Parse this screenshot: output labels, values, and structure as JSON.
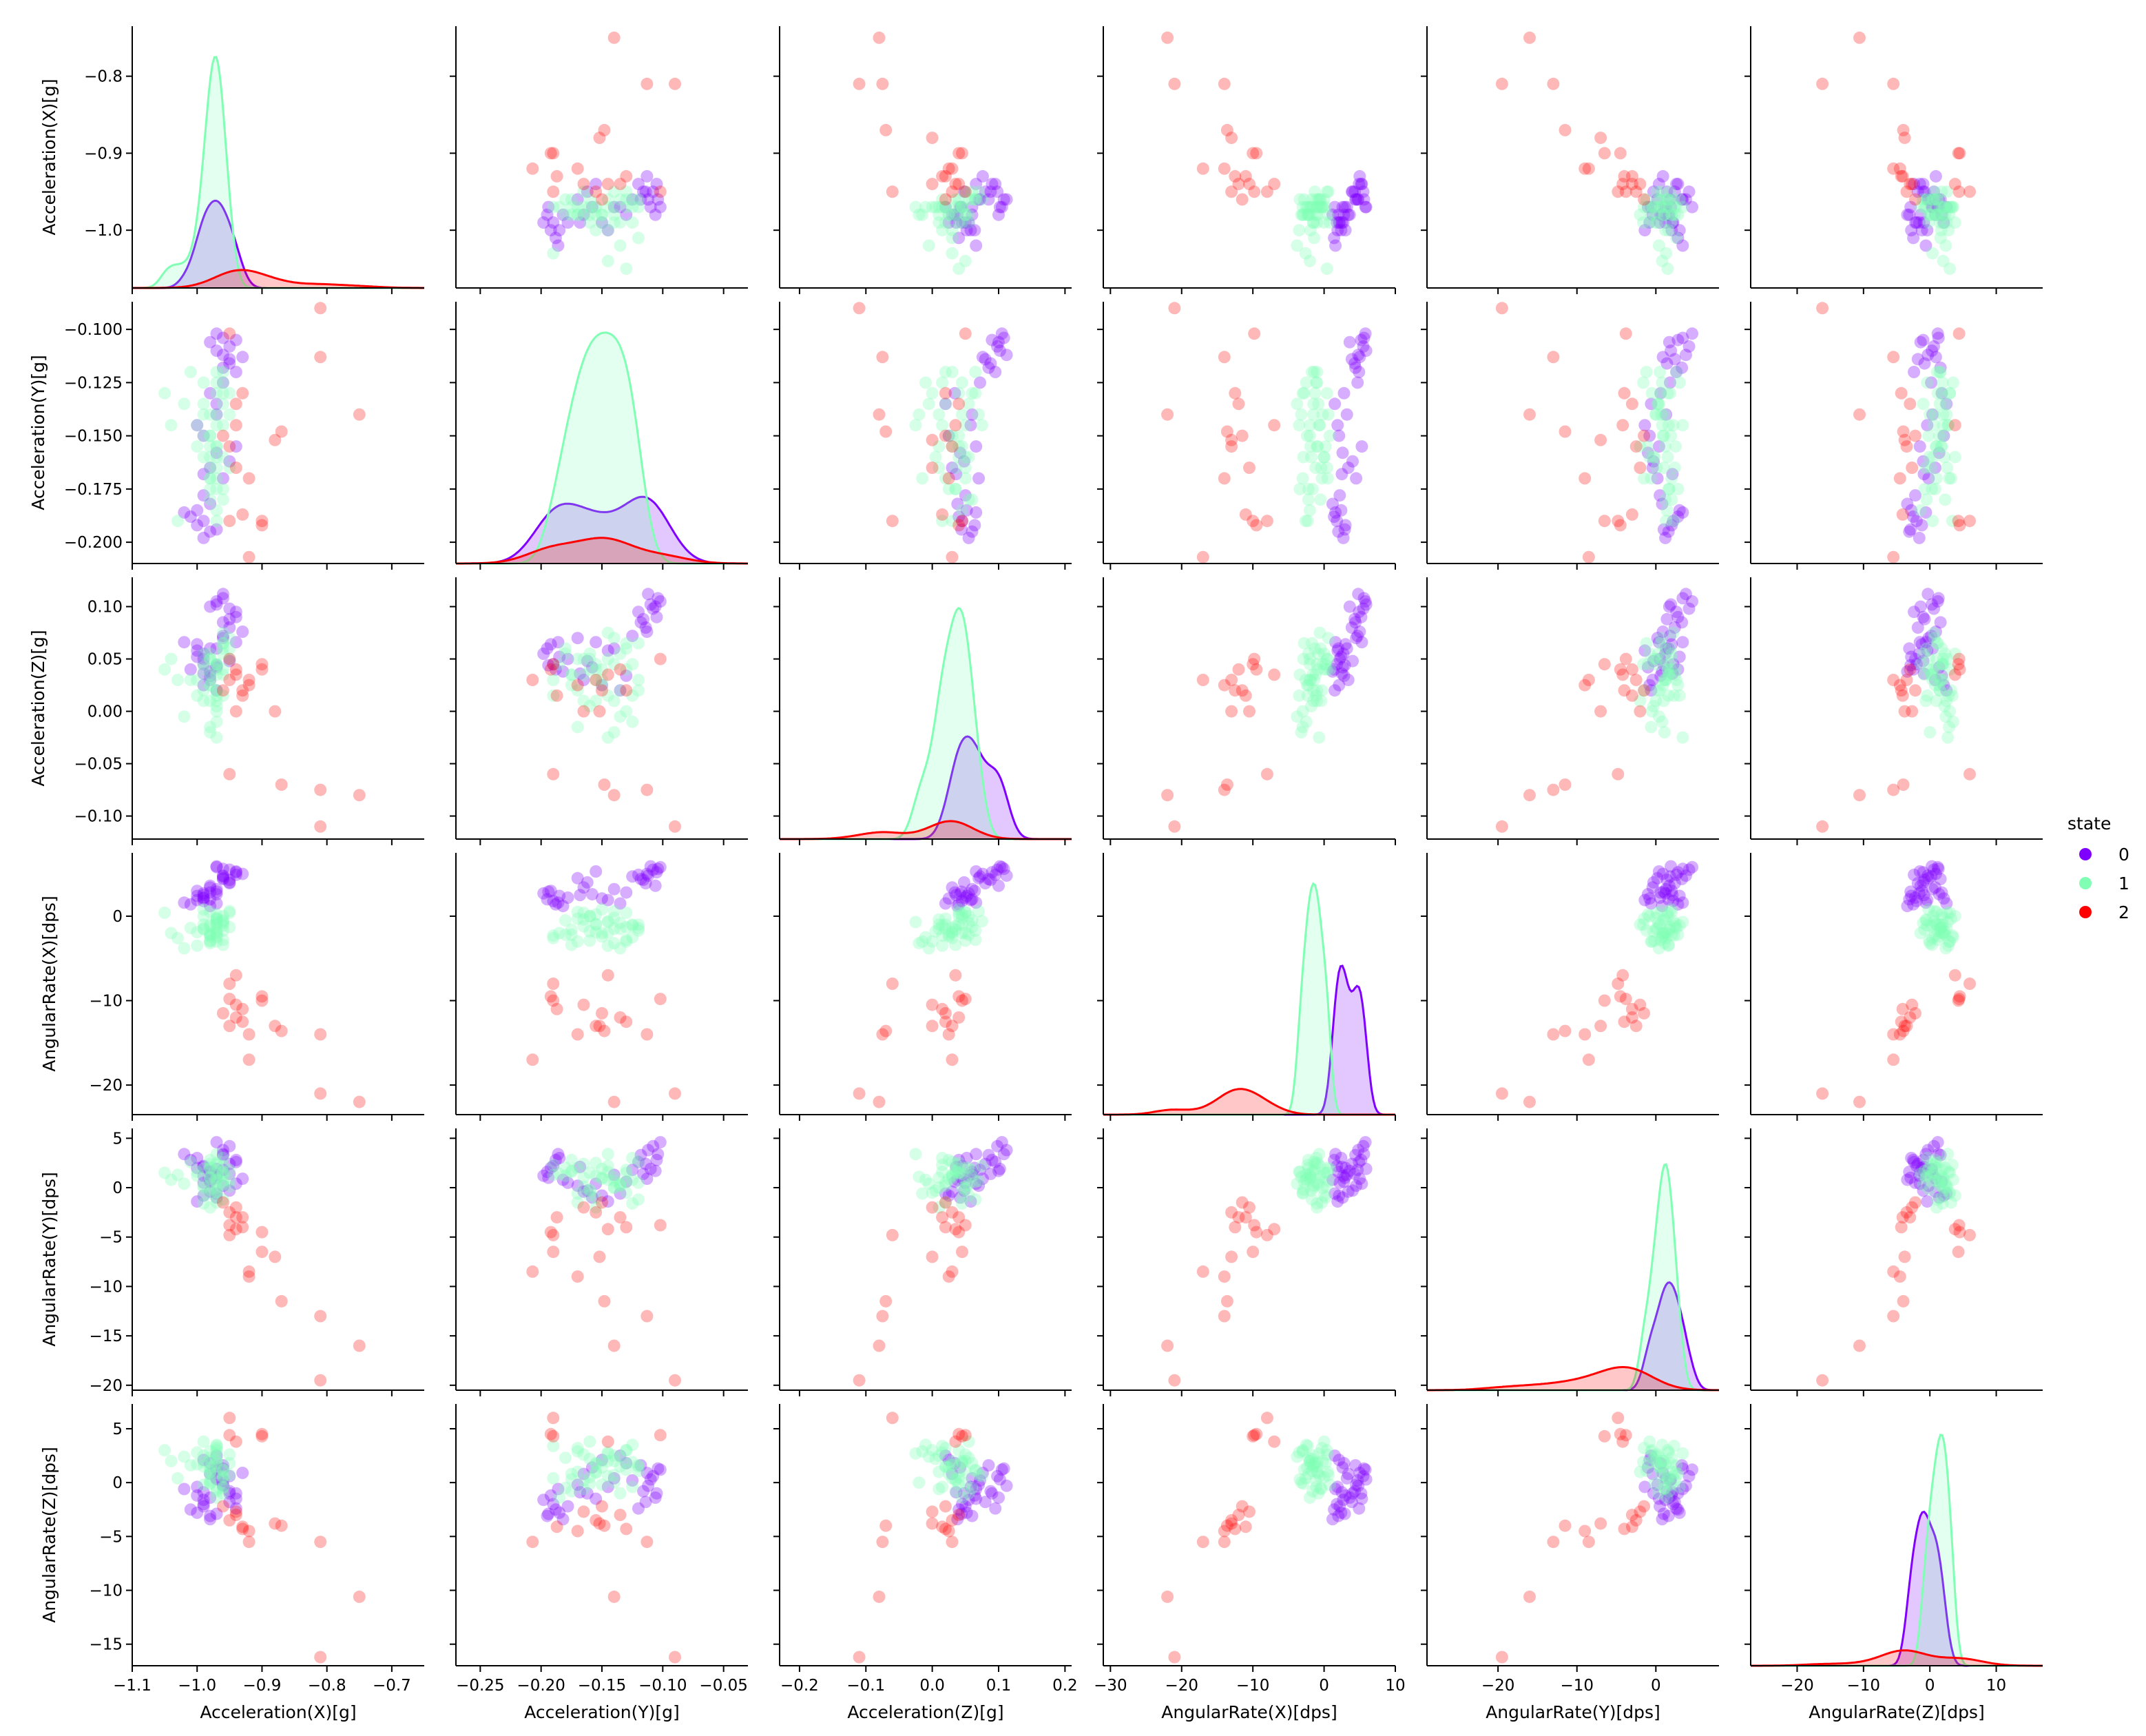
{
  "chart_data": {
    "type": "scatter",
    "kind": "pairplot",
    "variables": [
      "Acceleration(X)[g]",
      "Acceleration(Y)[g]",
      "Acceleration(Z)[g]",
      "AngularRate(X)[dps]",
      "AngularRate(Y)[dps]",
      "AngularRate(Z)[dps]"
    ],
    "diagonal": "kde",
    "axes": [
      {
        "lim": [
          -1.1,
          -0.65
        ],
        "ticks": [
          -1.1,
          -1.0,
          -0.9,
          -0.8,
          -0.7
        ],
        "tick_labels": [
          "−1.1",
          "−1.0",
          "−0.9",
          "−0.8",
          "−0.7"
        ]
      },
      {
        "lim": [
          -0.27,
          -0.03
        ],
        "ticks": [
          -0.25,
          -0.2,
          -0.15,
          -0.1,
          -0.05
        ],
        "tick_labels": [
          "−0.25",
          "−0.20",
          "−0.15",
          "−0.10",
          "−0.05"
        ]
      },
      {
        "lim": [
          -0.23,
          0.21
        ],
        "ticks": [
          -0.2,
          -0.1,
          0.0,
          0.1,
          0.2
        ],
        "tick_labels": [
          "−0.2",
          "−0.1",
          "0.0",
          "0.1",
          "0.2"
        ]
      },
      {
        "lim": [
          -31,
          10
        ],
        "ticks": [
          -30,
          -20,
          -10,
          0,
          10
        ],
        "tick_labels": [
          "−30",
          "−20",
          "−10",
          "0",
          "10"
        ]
      },
      {
        "lim": [
          -29,
          8
        ],
        "ticks": [
          -20,
          -10,
          0
        ],
        "tick_labels": [
          "−20",
          "−10",
          "0"
        ]
      },
      {
        "lim": [
          -27,
          17
        ],
        "ticks": [
          -20,
          -10,
          0,
          10
        ],
        "tick_labels": [
          "−20",
          "−10",
          "0",
          "10"
        ]
      }
    ],
    "row_axes": [
      {
        "lim": [
          -1.075,
          -0.735
        ],
        "ticks": [
          -1.0,
          -0.9,
          -0.8
        ],
        "tick_labels": [
          "−1.0",
          "−0.9",
          "−0.8"
        ]
      },
      {
        "lim": [
          -0.21,
          -0.087
        ],
        "ticks": [
          -0.2,
          -0.175,
          -0.15,
          -0.125,
          -0.1
        ],
        "tick_labels": [
          "−0.200",
          "−0.175",
          "−0.150",
          "−0.125",
          "−0.100"
        ]
      },
      {
        "lim": [
          -0.122,
          0.128
        ],
        "ticks": [
          -0.1,
          -0.05,
          0.0,
          0.05,
          0.1
        ],
        "tick_labels": [
          "−0.10",
          "−0.05",
          "0.00",
          "0.05",
          "0.10"
        ]
      },
      {
        "lim": [
          -23.5,
          7.5
        ],
        "ticks": [
          -20,
          -10,
          0
        ],
        "tick_labels": [
          "−20",
          "−10",
          "0"
        ]
      },
      {
        "lim": [
          -20.5,
          6
        ],
        "ticks": [
          -20,
          -15,
          -10,
          -5,
          0,
          5
        ],
        "tick_labels": [
          "−20",
          "−15",
          "−10",
          "−5",
          "0",
          "5"
        ]
      },
      {
        "lim": [
          -17,
          7.3
        ],
        "ticks": [
          -15,
          -10,
          -5,
          0,
          5
        ],
        "tick_labels": [
          "−15",
          "−10",
          "−5",
          "0",
          "5"
        ]
      }
    ],
    "legend": {
      "title": "state",
      "position": "right",
      "entries": [
        "0",
        "1",
        "2"
      ]
    },
    "series": [
      {
        "name": "0",
        "color": "#8000ff",
        "kde_peaks": [
          0.34,
          0.26,
          0.4,
          0.58,
          0.42,
          0.6
        ],
        "values": [
          [
            -0.97,
            -0.102,
            0.105,
            5.8,
            4.6,
            1.2
          ],
          [
            -0.95,
            -0.108,
            0.098,
            5.5,
            4.2,
            0.6
          ],
          [
            -0.96,
            -0.112,
            0.112,
            4.8,
            3.8,
            -0.3
          ],
          [
            -0.94,
            -0.105,
            0.09,
            5.2,
            2.8,
            -1.0
          ],
          [
            -0.96,
            -0.118,
            0.085,
            4.4,
            3.3,
            1.6
          ],
          [
            -0.95,
            -0.114,
            0.08,
            3.9,
            2.4,
            -1.8
          ],
          [
            -0.97,
            -0.11,
            0.102,
            5.9,
            1.9,
            0.3
          ],
          [
            -0.94,
            -0.12,
            0.095,
            4.9,
            2.6,
            -2.4
          ],
          [
            -0.96,
            -0.104,
            0.108,
            5.6,
            3.4,
            1.3
          ],
          [
            -0.95,
            -0.116,
            0.088,
            4.3,
            1.4,
            -0.8
          ],
          [
            -0.98,
            -0.106,
            0.1,
            3.6,
            1.7,
            -1.4
          ],
          [
            -0.93,
            -0.113,
            0.076,
            5.0,
            0.9,
            0.9
          ],
          [
            -1.0,
            -0.185,
            0.052,
            2.4,
            3.0,
            -2.8
          ],
          [
            -0.99,
            -0.19,
            0.045,
            1.8,
            2.2,
            -2.0
          ],
          [
            -0.98,
            -0.195,
            0.06,
            2.0,
            1.6,
            -3.1
          ],
          [
            -1.01,
            -0.188,
            0.04,
            1.4,
            2.8,
            -2.5
          ],
          [
            -0.99,
            -0.198,
            0.055,
            2.7,
            1.2,
            -1.6
          ],
          [
            -0.98,
            -0.182,
            0.038,
            1.2,
            0.8,
            -3.4
          ],
          [
            -1.0,
            -0.192,
            0.064,
            3.0,
            2.0,
            -1.2
          ],
          [
            -0.99,
            -0.178,
            0.05,
            2.2,
            0.5,
            -2.2
          ],
          [
            -1.02,
            -0.186,
            0.066,
            1.6,
            3.4,
            -0.6
          ],
          [
            -0.97,
            -0.194,
            0.044,
            2.9,
            1.0,
            -2.9
          ],
          [
            -0.98,
            -0.165,
            0.03,
            3.4,
            -0.4,
            0.8
          ],
          [
            -0.97,
            -0.158,
            0.042,
            2.6,
            -1.0,
            1.4
          ],
          [
            -0.96,
            -0.17,
            0.07,
            4.5,
            0.2,
            -0.2
          ],
          [
            -0.99,
            -0.15,
            0.025,
            2.1,
            -0.8,
            2.1
          ],
          [
            -0.97,
            -0.14,
            0.06,
            3.2,
            1.3,
            0.4
          ],
          [
            -0.95,
            -0.162,
            0.048,
            4.0,
            -0.3,
            -1.0
          ],
          [
            -0.98,
            -0.13,
            0.034,
            2.8,
            0.6,
            1.8
          ],
          [
            -1.0,
            -0.145,
            0.058,
            1.9,
            -1.4,
            -0.4
          ],
          [
            -0.96,
            -0.125,
            0.072,
            4.7,
            1.8,
            0.2
          ],
          [
            -0.97,
            -0.135,
            0.02,
            1.5,
            -0.6,
            2.5
          ],
          [
            -0.94,
            -0.155,
            0.066,
            5.3,
            0.4,
            -1.5
          ],
          [
            -0.99,
            -0.168,
            0.036,
            2.5,
            2.1,
            -0.9
          ]
        ]
      },
      {
        "name": "1",
        "color": "#80ffb4",
        "kde_peaks": [
          0.9,
          0.9,
          0.9,
          0.9,
          0.88,
          0.9
        ],
        "values": [
          [
            -0.97,
            -0.12,
            0.02,
            -1.0,
            0.5,
            1.5
          ],
          [
            -0.98,
            -0.15,
            0.03,
            -2.0,
            1.0,
            2.0
          ],
          [
            -0.96,
            -0.16,
            0.04,
            0.0,
            1.5,
            0.5
          ],
          [
            -0.97,
            -0.13,
            0.0,
            -3.0,
            -0.5,
            3.0
          ],
          [
            -0.98,
            -0.17,
            0.05,
            0.5,
            2.0,
            1.0
          ],
          [
            -0.99,
            -0.14,
            0.01,
            -1.5,
            0.0,
            2.5
          ],
          [
            -0.96,
            -0.18,
            0.06,
            -0.5,
            1.2,
            -0.5
          ],
          [
            -0.97,
            -0.125,
            -0.01,
            -2.5,
            0.8,
            3.5
          ],
          [
            -0.98,
            -0.165,
            0.035,
            -1.2,
            2.4,
            0.2
          ],
          [
            -0.97,
            -0.155,
            0.045,
            0.2,
            -1.0,
            1.8
          ],
          [
            -1.0,
            -0.145,
            0.015,
            -3.5,
            1.6,
            2.8
          ],
          [
            -0.96,
            -0.135,
            0.055,
            -0.8,
            0.3,
            -1.0
          ],
          [
            -0.98,
            -0.175,
            0.025,
            -2.2,
            2.8,
            0.8
          ],
          [
            -0.97,
            -0.16,
            0.005,
            -1.8,
            -0.3,
            2.2
          ],
          [
            -0.99,
            -0.15,
            0.04,
            0.8,
            1.9,
            -0.2
          ],
          [
            -0.96,
            -0.13,
            0.065,
            -2.8,
            0.6,
            1.2
          ],
          [
            -0.97,
            -0.17,
            0.02,
            -0.3,
            -1.5,
            3.2
          ],
          [
            -0.98,
            -0.14,
            -0.02,
            -3.2,
            1.1,
            0.0
          ],
          [
            -1.01,
            -0.12,
            0.03,
            -1.4,
            2.6,
            1.6
          ],
          [
            -0.95,
            -0.165,
            0.05,
            0.4,
            0.1,
            2.6
          ],
          [
            -0.97,
            -0.185,
            0.045,
            -2.0,
            1.4,
            -1.4
          ],
          [
            -0.98,
            -0.155,
            0.01,
            -1.0,
            -2.0,
            1.0
          ],
          [
            -0.96,
            -0.145,
            0.075,
            -0.6,
            2.2,
            0.6
          ],
          [
            -1.02,
            -0.135,
            -0.005,
            -3.8,
            0.4,
            2.4
          ],
          [
            -0.97,
            -0.175,
            0.035,
            -1.6,
            1.7,
            -0.8
          ],
          [
            -0.99,
            -0.16,
            0.055,
            0.0,
            -0.8,
            3.8
          ],
          [
            -0.98,
            -0.15,
            0.025,
            -2.4,
            0.9,
            1.4
          ],
          [
            -0.96,
            -0.125,
            0.015,
            -1.1,
            3.0,
            -0.4
          ],
          [
            -0.97,
            -0.14,
            0.045,
            -0.2,
            0.0,
            2.0
          ],
          [
            -1.03,
            -0.19,
            0.03,
            -2.6,
            1.3,
            0.4
          ],
          [
            -0.95,
            -0.13,
            0.06,
            -1.3,
            1.8,
            1.8
          ],
          [
            -0.98,
            -0.17,
            -0.015,
            -3.0,
            -0.6,
            2.9
          ],
          [
            -0.97,
            -0.155,
            0.04,
            -0.9,
            2.5,
            0.9
          ],
          [
            -1.05,
            -0.13,
            0.04,
            0.4,
            1.5,
            3.0
          ],
          [
            -1.04,
            -0.145,
            0.05,
            -2.0,
            0.8,
            2.0
          ],
          [
            -0.96,
            -0.12,
            0.065,
            -1.7,
            -1.2,
            1.1
          ],
          [
            -0.97,
            -0.165,
            0.01,
            -0.4,
            1.0,
            -0.6
          ],
          [
            -0.98,
            -0.18,
            0.055,
            -2.2,
            2.0,
            2.3
          ],
          [
            -0.99,
            -0.135,
            0.02,
            -1.5,
            0.2,
            1.5
          ],
          [
            -0.96,
            -0.175,
            0.035,
            -3.4,
            1.6,
            0.3
          ],
          [
            -0.97,
            -0.145,
            -0.025,
            -0.7,
            3.4,
            2.7
          ],
          [
            -0.98,
            -0.16,
            0.05,
            -2.9,
            -0.2,
            -0.1
          ],
          [
            -1.0,
            -0.155,
            0.03,
            -1.9,
            1.2,
            1.7
          ],
          [
            -0.95,
            -0.14,
            0.07,
            0.6,
            0.7,
            0.7
          ],
          [
            -0.97,
            -0.19,
            0.015,
            -2.3,
            2.3,
            3.4
          ],
          [
            -0.99,
            -0.125,
            0.045,
            -1.0,
            -1.6,
            1.9
          ]
        ]
      },
      {
        "name": "2",
        "color": "#ff0000",
        "kde_peaks": [
          0.07,
          0.1,
          0.07,
          0.1,
          0.09,
          0.06
        ],
        "values": [
          [
            -0.75,
            -0.14,
            -0.08,
            -22.0,
            -16.0,
            -10.6
          ],
          [
            -0.81,
            -0.09,
            -0.11,
            -21.0,
            -19.5,
            -16.2
          ],
          [
            -0.81,
            -0.113,
            -0.075,
            -14.0,
            -13.0,
            -5.5
          ],
          [
            -0.87,
            -0.148,
            -0.07,
            -13.6,
            -11.5,
            -4.0
          ],
          [
            -0.88,
            -0.152,
            0.0,
            -13.0,
            -7.0,
            -3.8
          ],
          [
            -0.9,
            -0.19,
            0.045,
            -10.0,
            -6.5,
            4.3
          ],
          [
            -0.9,
            -0.192,
            0.04,
            -9.5,
            -4.5,
            4.5
          ],
          [
            -0.92,
            -0.207,
            0.03,
            -17.0,
            -8.5,
            -5.5
          ],
          [
            -0.92,
            -0.17,
            0.025,
            -14.0,
            -9.0,
            -4.5
          ],
          [
            -0.93,
            -0.13,
            0.02,
            -12.5,
            -4.0,
            -4.3
          ],
          [
            -0.93,
            -0.187,
            0.015,
            -11.0,
            -3.0,
            -4.1
          ],
          [
            -0.95,
            -0.155,
            0.03,
            -13.0,
            -2.5,
            -3.5
          ],
          [
            -0.94,
            -0.165,
            0.0,
            -10.5,
            -2.0,
            -2.7
          ],
          [
            -0.95,
            -0.19,
            -0.06,
            -8.0,
            -4.8,
            6.0
          ],
          [
            -0.94,
            -0.145,
            0.035,
            -7.0,
            -4.2,
            3.8
          ],
          [
            -0.95,
            -0.102,
            0.05,
            -9.8,
            -3.8,
            4.4
          ],
          [
            -0.94,
            -0.135,
            0.04,
            -12.0,
            -3.0,
            -3.0
          ],
          [
            -0.96,
            -0.15,
            0.02,
            -11.5,
            -1.5,
            -2.2
          ]
        ]
      }
    ]
  }
}
